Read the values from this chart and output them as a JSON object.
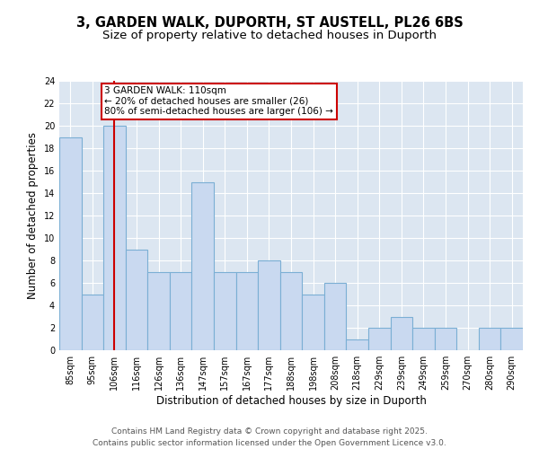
{
  "title1": "3, GARDEN WALK, DUPORTH, ST AUSTELL, PL26 6BS",
  "title2": "Size of property relative to detached houses in Duporth",
  "xlabel": "Distribution of detached houses by size in Duporth",
  "ylabel": "Number of detached properties",
  "categories": [
    "85sqm",
    "95sqm",
    "106sqm",
    "116sqm",
    "126sqm",
    "136sqm",
    "147sqm",
    "157sqm",
    "167sqm",
    "177sqm",
    "188sqm",
    "198sqm",
    "208sqm",
    "218sqm",
    "229sqm",
    "239sqm",
    "249sqm",
    "259sqm",
    "270sqm",
    "280sqm",
    "290sqm"
  ],
  "values": [
    19,
    5,
    20,
    9,
    7,
    7,
    15,
    7,
    7,
    8,
    7,
    5,
    6,
    1,
    2,
    3,
    2,
    2,
    0,
    2,
    2
  ],
  "bar_color": "#c9d9f0",
  "bar_edge_color": "#7bafd4",
  "highlight_index": 2,
  "highlight_color": "#cc0000",
  "annotation_text": "3 GARDEN WALK: 110sqm\n← 20% of detached houses are smaller (26)\n80% of semi-detached houses are larger (106) →",
  "annotation_box_color": "#ffffff",
  "annotation_box_edge": "#cc0000",
  "ylim": [
    0,
    24
  ],
  "yticks": [
    0,
    2,
    4,
    6,
    8,
    10,
    12,
    14,
    16,
    18,
    20,
    22,
    24
  ],
  "background_color": "#dce6f1",
  "footer_text": "Contains HM Land Registry data © Crown copyright and database right 2025.\nContains public sector information licensed under the Open Government Licence v3.0.",
  "title_fontsize": 10.5,
  "subtitle_fontsize": 9.5,
  "label_fontsize": 8.5,
  "tick_fontsize": 7,
  "footer_fontsize": 6.5,
  "annot_fontsize": 7.5
}
